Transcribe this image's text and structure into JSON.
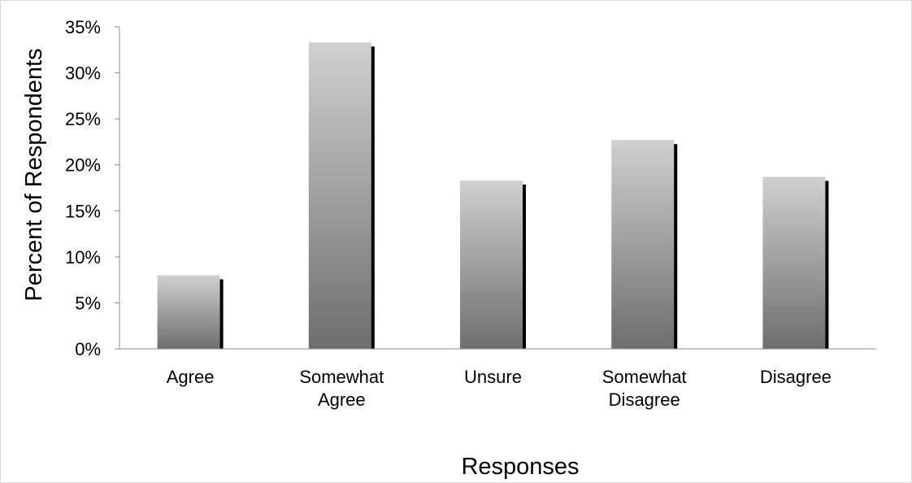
{
  "chart_data": {
    "type": "bar",
    "categories": [
      [
        "Agree"
      ],
      [
        "Somewhat",
        "Agree"
      ],
      [
        "Unsure"
      ],
      [
        "Somewhat",
        "Disagree"
      ],
      [
        "Disagree"
      ]
    ],
    "values": [
      8,
      33.3,
      18.3,
      22.7,
      18.7
    ],
    "title": "",
    "xlabel": "Responses",
    "ylabel": "Percent of Respondents",
    "ylim": [
      0,
      35
    ],
    "yticks": [
      0,
      5,
      10,
      15,
      20,
      25,
      30,
      35
    ],
    "ytick_labels": [
      "0%",
      "5%",
      "10%",
      "15%",
      "20%",
      "25%",
      "30%",
      "35%"
    ],
    "grid": false,
    "legend": "none",
    "colors": {
      "bar_top": "#d0d0d0",
      "bar_bottom": "#6e6e6e",
      "bar_shadow": "#000000",
      "axis": "#8c8c8c"
    }
  }
}
